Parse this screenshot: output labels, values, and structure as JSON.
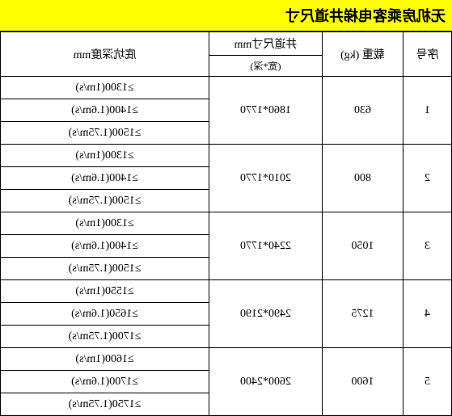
{
  "title": "无机房乘客电梯井道尺寸",
  "headers": {
    "seq": "序号",
    "weight": "载重 (kg)",
    "dim_main": "井道尺寸mm",
    "dim_sub": "(宽*深)",
    "depth": "底坑深度mm"
  },
  "rows": [
    {
      "seq": "1",
      "weight": "630",
      "dim": "1860*1770",
      "depths": [
        "≥1300(1m/s)",
        "≥1400(1.6m/s)",
        "≥1500(1.75m/s)"
      ]
    },
    {
      "seq": "2",
      "weight": "800",
      "dim": "2010*1770",
      "depths": [
        "≥1300(1m/s)",
        "≥1400(1.6m/s)",
        "≥1500(1.75m/s)"
      ]
    },
    {
      "seq": "3",
      "weight": "1050",
      "dim": "2240*1770",
      "depths": [
        "≥1300(1m/s)",
        "≥1400(1.6m/s)",
        "≥1500(1.75m/s)"
      ]
    },
    {
      "seq": "4",
      "weight": "1275",
      "dim": "2490*2190",
      "depths": [
        "≥1550(1m/s)",
        "≥1650(1.6m/s)",
        "≥1700(1.75m/s)"
      ]
    },
    {
      "seq": "5",
      "weight": "1600",
      "dim": "2600*2400",
      "depths": [
        "≥1600(1m/s)",
        "≥1700(1.6m/s)",
        "≥1750(1.75m/s)"
      ]
    }
  ],
  "style": {
    "title_bg": "#ffff00",
    "border_color": "#000000",
    "bg_color": "#ffffff",
    "font_family": "SimSun"
  }
}
